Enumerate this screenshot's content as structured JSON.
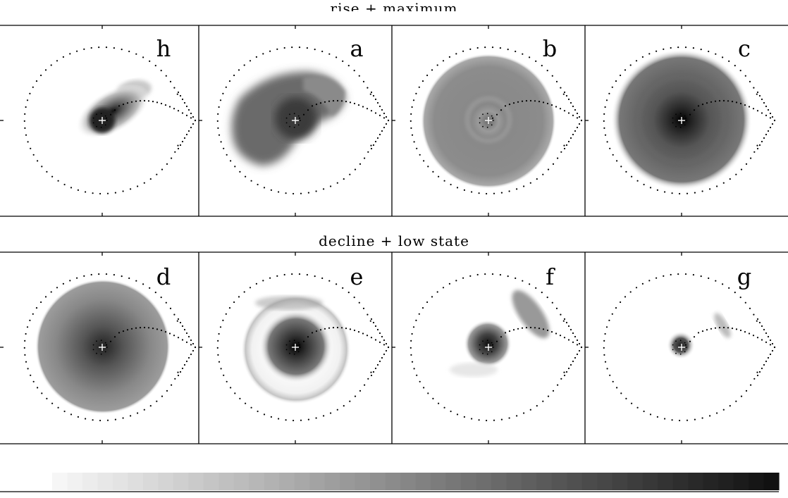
{
  "figure": {
    "top_row_title": "rise + maximum",
    "bottom_row_title": "decline + low state",
    "panels": [
      {
        "label": "h",
        "row": "rise + maximum"
      },
      {
        "label": "a",
        "row": "rise + maximum"
      },
      {
        "label": "b",
        "row": "rise + maximum"
      },
      {
        "label": "c",
        "row": "rise + maximum"
      },
      {
        "label": "d",
        "row": "decline + low state"
      },
      {
        "label": "e",
        "row": "decline + low state"
      },
      {
        "label": "f",
        "row": "decline + low state"
      },
      {
        "label": "g",
        "row": "decline + low state"
      }
    ],
    "colors": {
      "scale_light": "#f6f6f6",
      "scale_dark": "#111111",
      "marker": "#ffffff",
      "frame": "#000000"
    },
    "colorbar_steps": 48
  }
}
